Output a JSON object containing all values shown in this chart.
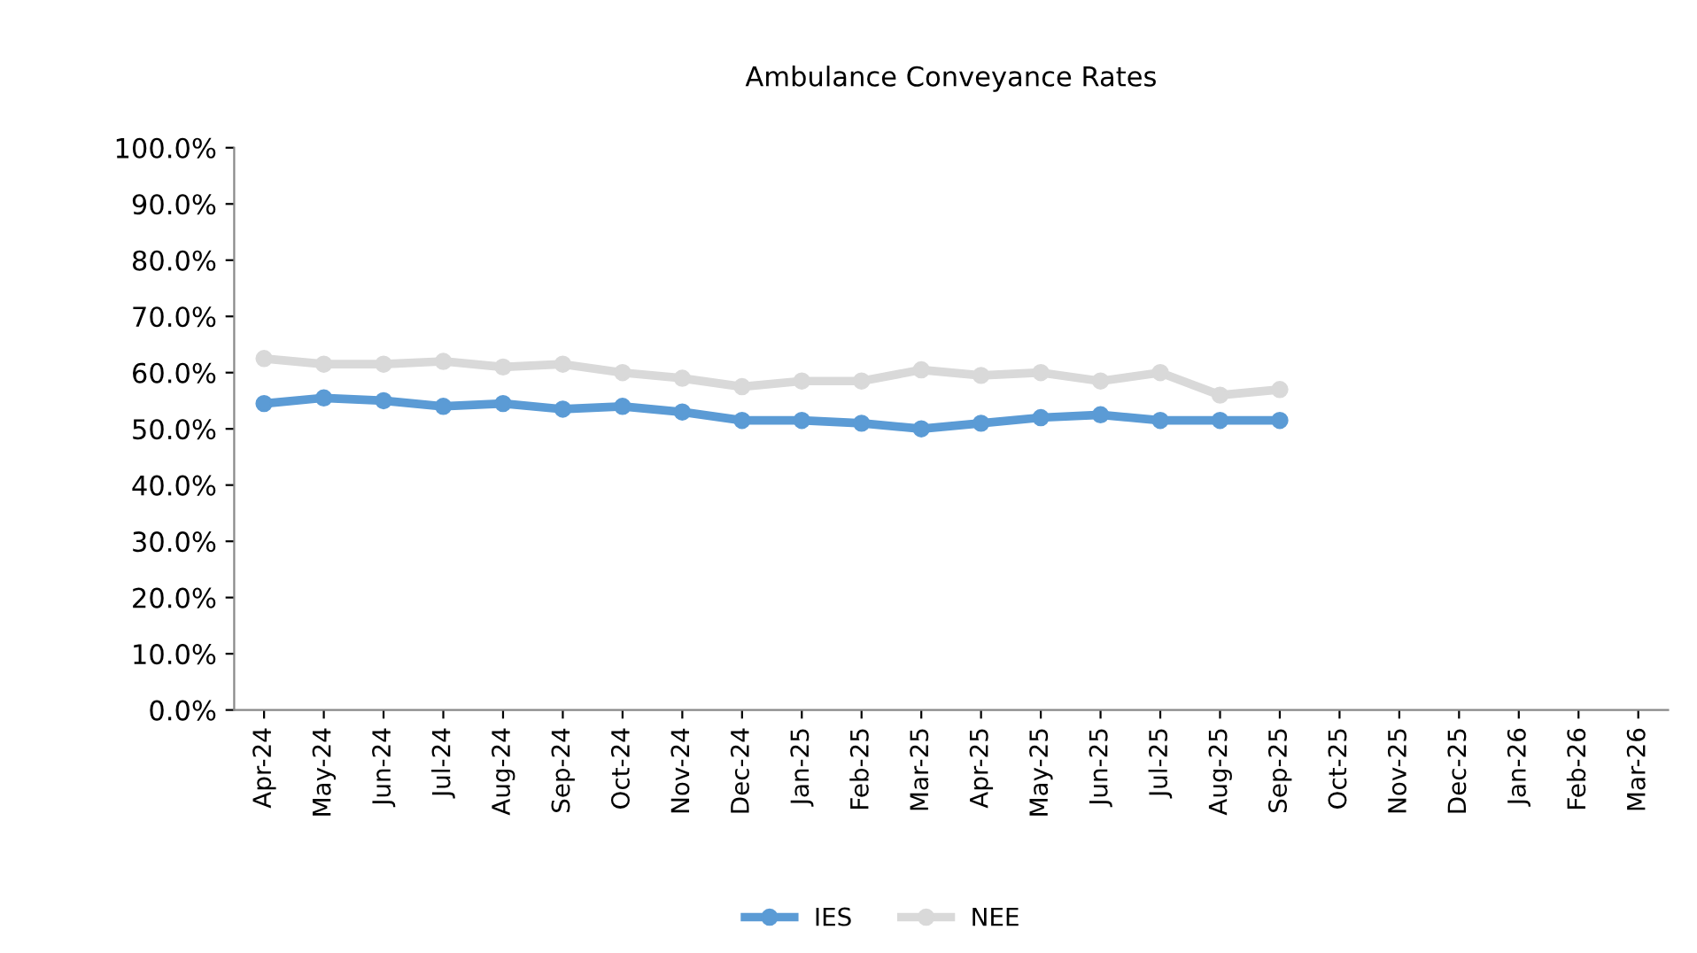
{
  "chart_data": {
    "type": "line",
    "title": "Ambulance Conveyance Rates",
    "categories": [
      "Apr-24",
      "May-24",
      "Jun-24",
      "Jul-24",
      "Aug-24",
      "Sep-24",
      "Oct-24",
      "Nov-24",
      "Dec-24",
      "Jan-25",
      "Feb-25",
      "Mar-25",
      "Apr-25",
      "May-25",
      "Jun-25",
      "Jul-25",
      "Aug-25",
      "Sep-25",
      "Oct-25",
      "Nov-25",
      "Dec-25",
      "Jan-26",
      "Feb-26",
      "Mar-26"
    ],
    "series": [
      {
        "name": "IES",
        "color": "#5b9bd5",
        "values": [
          54.5,
          55.5,
          55,
          54,
          54.5,
          53.5,
          54,
          53,
          51.5,
          51.5,
          51,
          50,
          51,
          52,
          52.5,
          51.5,
          51.5,
          51.5,
          null,
          null,
          null,
          null,
          null,
          null
        ]
      },
      {
        "name": "NEE",
        "color": "#d9d9d9",
        "values": [
          62.5,
          61.5,
          61.5,
          62,
          61,
          61.5,
          60,
          59,
          57.5,
          58.5,
          58.5,
          60.5,
          59.5,
          60,
          58.5,
          60,
          56,
          57,
          null,
          null,
          null,
          null,
          null,
          null
        ]
      }
    ],
    "ylim": [
      0,
      100
    ],
    "yticks": [
      {
        "value": 0,
        "label": "0.0%"
      },
      {
        "value": 10,
        "label": "10.0%"
      },
      {
        "value": 20,
        "label": "20.0%"
      },
      {
        "value": 30,
        "label": "30.0%"
      },
      {
        "value": 40,
        "label": "40.0%"
      },
      {
        "value": 50,
        "label": "50.0%"
      },
      {
        "value": 60,
        "label": "60.0%"
      },
      {
        "value": 70,
        "label": "70.0%"
      },
      {
        "value": 80,
        "label": "80.0%"
      },
      {
        "value": 90,
        "label": "90.0%"
      },
      {
        "value": 100,
        "label": "100.0%"
      }
    ],
    "legend": "bottom",
    "marker": "circle",
    "line_style": "solid",
    "grid": false
  }
}
